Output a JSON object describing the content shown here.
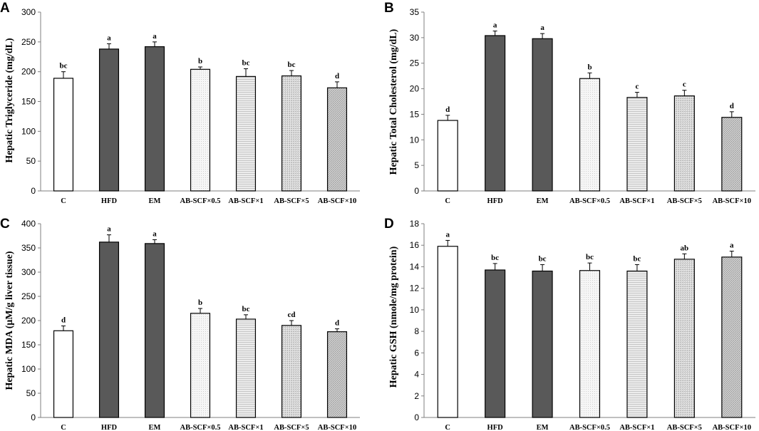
{
  "chart_data": [
    {
      "panel": "A",
      "type": "bar",
      "ylabel": "Hepatic Triglyceride (mg/dL)",
      "ylim": [
        0,
        300
      ],
      "yticks": [
        0,
        50,
        100,
        150,
        200,
        250,
        300
      ],
      "categories": [
        "C",
        "HFD",
        "EM",
        "AB-SCF×0.5",
        "AB-SCF×1",
        "AB-SCF×5",
        "AB-SCF×10"
      ],
      "values": [
        189,
        238,
        242,
        204,
        192,
        193,
        173
      ],
      "errors": [
        11,
        9,
        8,
        4,
        13,
        9,
        10
      ],
      "significance": [
        "bc",
        "a",
        "a",
        "b",
        "bc",
        "bc",
        "d"
      ]
    },
    {
      "panel": "B",
      "type": "bar",
      "ylabel": "Hepatic Total Cholesterol (mg/dL)",
      "ylim": [
        0,
        35
      ],
      "yticks": [
        0,
        5,
        10,
        15,
        20,
        25,
        30,
        35
      ],
      "categories": [
        "C",
        "HFD",
        "EM",
        "AB-SCF×0.5",
        "AB-SCF×1",
        "AB-SCF×5",
        "AB-SCF×10"
      ],
      "values": [
        13.8,
        30.4,
        29.8,
        22.0,
        18.3,
        18.6,
        14.4
      ],
      "errors": [
        1.0,
        0.9,
        1.0,
        1.1,
        1.0,
        1.1,
        1.1
      ],
      "significance": [
        "d",
        "a",
        "a",
        "b",
        "c",
        "c",
        "d"
      ]
    },
    {
      "panel": "C",
      "type": "bar",
      "ylabel": "Hepatic MDA (μM/g liver tissue)",
      "ylim": [
        0,
        400
      ],
      "yticks": [
        0,
        50,
        100,
        150,
        200,
        250,
        300,
        350,
        400
      ],
      "categories": [
        "C",
        "HFD",
        "EM",
        "AB-SCF×0.5",
        "AB-SCF×1",
        "AB-SCF×5",
        "AB-SCF×10"
      ],
      "values": [
        179,
        362,
        359,
        215,
        203,
        190,
        177
      ],
      "errors": [
        10,
        15,
        8,
        10,
        9,
        10,
        6
      ],
      "significance": [
        "d",
        "a",
        "a",
        "b",
        "bc",
        "cd",
        "d"
      ]
    },
    {
      "panel": "D",
      "type": "bar",
      "ylabel": "Hepatic GSH (nmole/mg protein)",
      "ylim": [
        0,
        18
      ],
      "yticks": [
        0,
        2,
        4,
        6,
        8,
        10,
        12,
        14,
        16,
        18
      ],
      "categories": [
        "C",
        "HFD",
        "EM",
        "AB-SCF×0.5",
        "AB-SCF×1",
        "AB-SCF×5",
        "AB-SCF×10"
      ],
      "values": [
        15.9,
        13.7,
        13.6,
        13.65,
        13.6,
        14.7,
        14.9
      ],
      "errors": [
        0.55,
        0.6,
        0.6,
        0.7,
        0.6,
        0.5,
        0.55
      ],
      "significance": [
        "a",
        "bc",
        "bc",
        "bc",
        "bc",
        "ab",
        "a"
      ]
    }
  ],
  "bar_fills": [
    "#ffffff",
    "#595959",
    "#595959",
    "#f3f3f3",
    "#e6e6e6",
    "#dedede",
    "#c8c8c8"
  ]
}
